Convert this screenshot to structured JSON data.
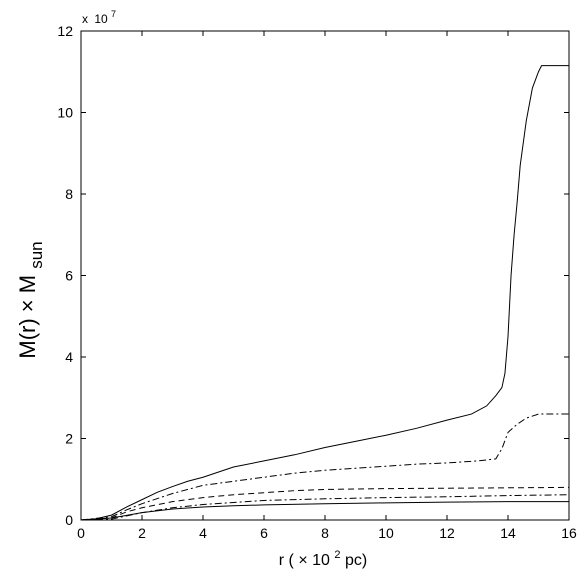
{
  "chart_data": {
    "type": "line",
    "xlabel": {
      "prefix": "r (",
      "times": "×",
      "base": " 10",
      "exp": "2",
      "suffix": "pc)"
    },
    "ylabel": {
      "main": "M(r) × M",
      "sub": "sun"
    },
    "y_multiplier": {
      "times": "x",
      "base": "10",
      "exp": "7"
    },
    "xlim": [
      0,
      16
    ],
    "ylim": [
      0,
      12
    ],
    "xticks": [
      0,
      2,
      4,
      6,
      8,
      10,
      12,
      14,
      16
    ],
    "yticks": [
      0,
      2,
      4,
      6,
      8,
      10,
      12
    ],
    "grid": false,
    "series": [
      {
        "style": "solid",
        "x": [
          0,
          0.5,
          1.0,
          1.5,
          2.0,
          2.5,
          3.0,
          3.5,
          4.0,
          5.0,
          6.0,
          7.0,
          8.0,
          9.0,
          10.0,
          11.0,
          12.0,
          12.8,
          13.3,
          13.6,
          13.8,
          13.9,
          14.0,
          14.1,
          14.2,
          14.3,
          14.4,
          14.6,
          14.8,
          15.0,
          15.1,
          15.2,
          16.0
        ],
        "y": [
          0,
          0.03,
          0.12,
          0.32,
          0.5,
          0.68,
          0.82,
          0.95,
          1.05,
          1.3,
          1.45,
          1.6,
          1.78,
          1.93,
          2.08,
          2.25,
          2.45,
          2.6,
          2.8,
          3.05,
          3.25,
          3.6,
          4.5,
          6.0,
          7.0,
          7.8,
          8.7,
          9.8,
          10.6,
          11.0,
          11.15,
          11.15,
          11.15
        ]
      },
      {
        "style": "dashdot",
        "x": [
          0,
          1.0,
          1.5,
          2.0,
          3.0,
          4.0,
          5.0,
          6.0,
          7.0,
          8.0,
          9.0,
          10.0,
          11.0,
          12.0,
          13.0,
          13.6,
          13.8,
          14.0,
          14.3,
          14.6,
          15.0,
          16.0
        ],
        "y": [
          0,
          0.08,
          0.25,
          0.4,
          0.65,
          0.85,
          0.95,
          1.05,
          1.15,
          1.22,
          1.27,
          1.32,
          1.37,
          1.4,
          1.45,
          1.5,
          1.75,
          2.15,
          2.35,
          2.5,
          2.6,
          2.6
        ]
      },
      {
        "style": "dashed",
        "x": [
          0,
          1.0,
          1.5,
          2.0,
          3.0,
          4.0,
          5.0,
          6.0,
          7.0,
          8.0,
          9.0,
          10.0,
          12.0,
          14.0,
          16.0
        ],
        "y": [
          0,
          0.05,
          0.2,
          0.3,
          0.45,
          0.55,
          0.62,
          0.67,
          0.72,
          0.75,
          0.76,
          0.77,
          0.78,
          0.79,
          0.8
        ]
      },
      {
        "style": "dashdot",
        "x": [
          0,
          1.0,
          2.0,
          3.0,
          4.0,
          5.0,
          6.0,
          7.0,
          8.0,
          10.0,
          12.0,
          14.0,
          16.0
        ],
        "y": [
          0,
          0.02,
          0.18,
          0.3,
          0.38,
          0.43,
          0.48,
          0.5,
          0.52,
          0.55,
          0.57,
          0.6,
          0.62
        ]
      },
      {
        "style": "solid",
        "x": [
          0,
          1.0,
          2.0,
          3.0,
          4.0,
          5.0,
          6.0,
          8.0,
          10.0,
          12.0,
          14.0,
          16.0
        ],
        "y": [
          0,
          0.05,
          0.18,
          0.27,
          0.32,
          0.35,
          0.37,
          0.4,
          0.42,
          0.44,
          0.45,
          0.45
        ]
      }
    ]
  }
}
